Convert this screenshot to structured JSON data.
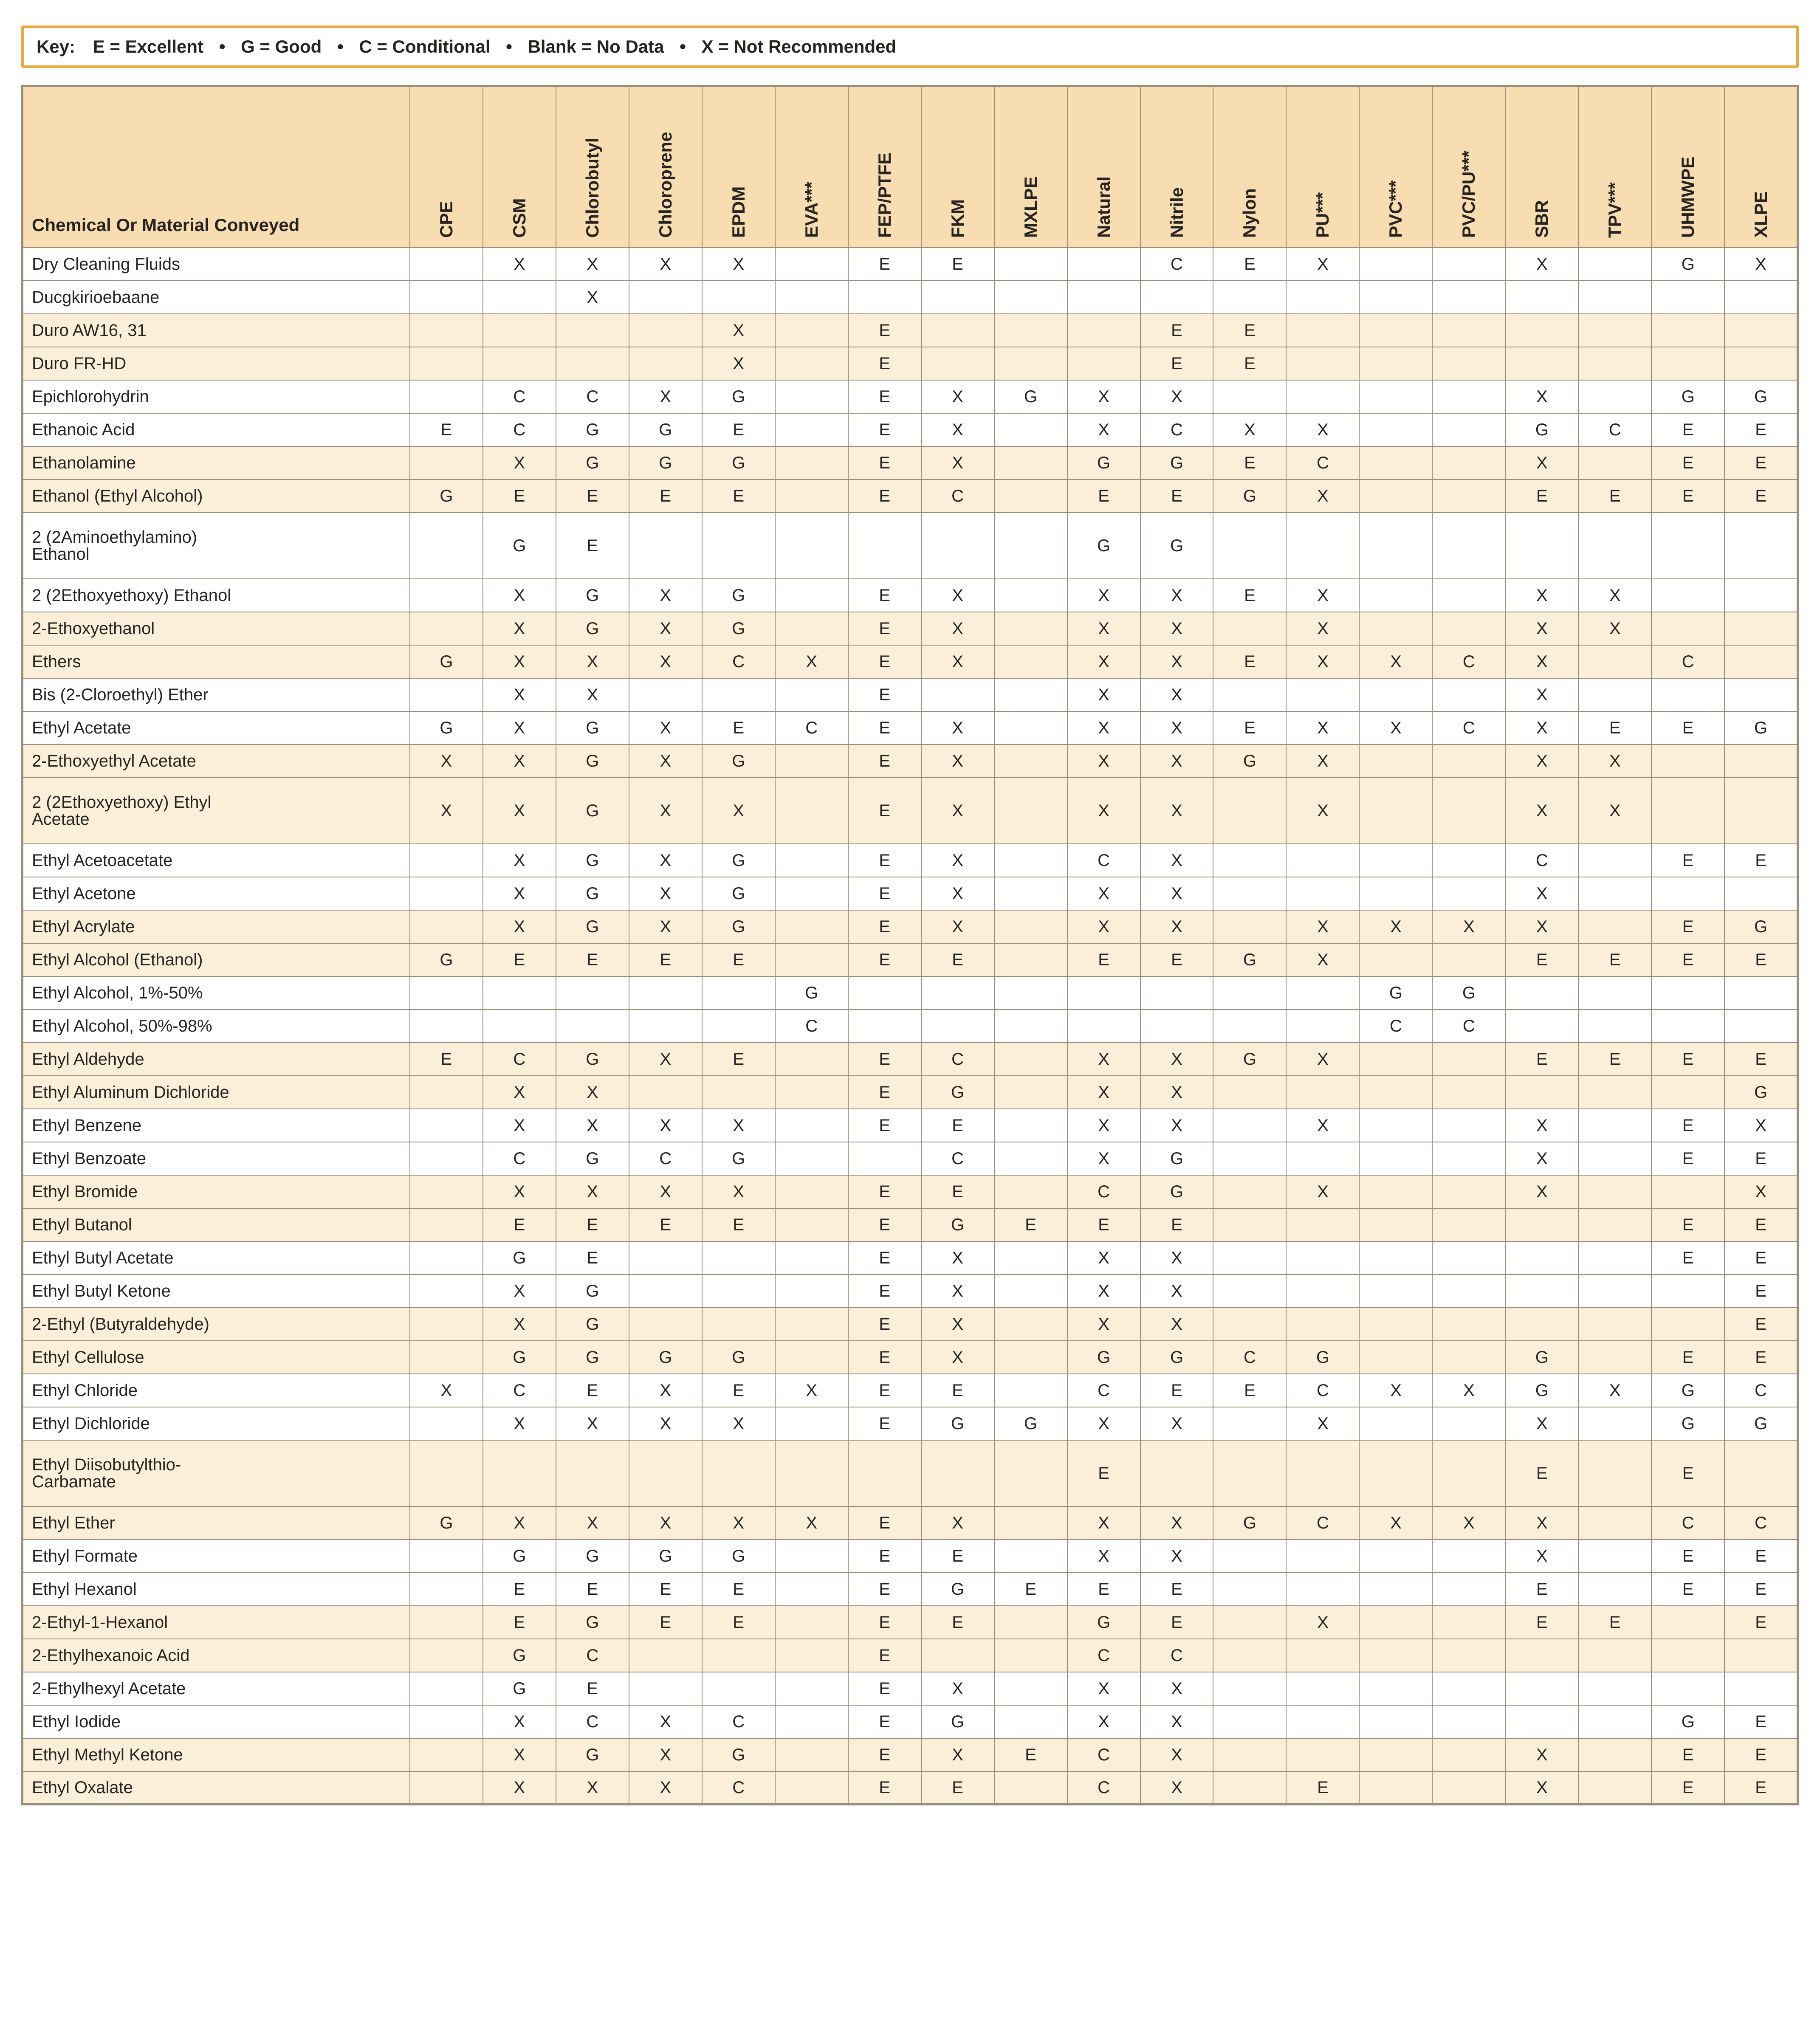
{
  "key": {
    "lead": "Key:",
    "items": [
      "E = Excellent",
      "G = Good",
      "C = Conditional",
      "Blank = No Data",
      "X = Not Recommended"
    ],
    "sep": "•"
  },
  "columns": {
    "row_header": "Chemical Or\nMaterial Conveyed",
    "list": [
      "CPE",
      "CSM",
      "Chlorobutyl",
      "Chloroprene",
      "EPDM",
      "EVA***",
      "FEP/PTFE",
      "FKM",
      "MXLPE",
      "Natural",
      "Nitrile",
      "Nylon",
      "PU***",
      "PVC***",
      "PVC/PU***",
      "SBR",
      "TPV***",
      "UHMWPE",
      "XLPE"
    ]
  },
  "rows": [
    {
      "chem": "Dry Cleaning Fluids",
      "shade": false,
      "v": [
        "",
        "X",
        "X",
        "X",
        "X",
        "",
        "E",
        "E",
        "",
        "",
        "C",
        "E",
        "X",
        "",
        "",
        "X",
        "",
        "G",
        "X"
      ]
    },
    {
      "chem": "Ducgkirioebaane",
      "shade": false,
      "v": [
        "",
        "",
        "X",
        "",
        "",
        "",
        "",
        "",
        "",
        "",
        "",
        "",
        "",
        "",
        "",
        "",
        "",
        "",
        ""
      ]
    },
    {
      "chem": "Duro AW16, 31",
      "shade": true,
      "v": [
        "",
        "",
        "",
        "",
        "X",
        "",
        "E",
        "",
        "",
        "",
        "E",
        "E",
        "",
        "",
        "",
        "",
        "",
        "",
        ""
      ]
    },
    {
      "chem": "Duro FR-HD",
      "shade": true,
      "v": [
        "",
        "",
        "",
        "",
        "X",
        "",
        "E",
        "",
        "",
        "",
        "E",
        "E",
        "",
        "",
        "",
        "",
        "",
        "",
        ""
      ]
    },
    {
      "chem": "Epichlorohydrin",
      "shade": false,
      "v": [
        "",
        "C",
        "C",
        "X",
        "G",
        "",
        "E",
        "X",
        "G",
        "X",
        "X",
        "",
        "",
        "",
        "",
        "X",
        "",
        "G",
        "G"
      ]
    },
    {
      "chem": "Ethanoic Acid",
      "shade": false,
      "v": [
        "E",
        "C",
        "G",
        "G",
        "E",
        "",
        "E",
        "X",
        "",
        "X",
        "C",
        "X",
        "X",
        "",
        "",
        "G",
        "C",
        "E",
        "E"
      ]
    },
    {
      "chem": "Ethanolamine",
      "shade": true,
      "v": [
        "",
        "X",
        "G",
        "G",
        "G",
        "",
        "E",
        "X",
        "",
        "G",
        "G",
        "E",
        "C",
        "",
        "",
        "X",
        "",
        "E",
        "E"
      ]
    },
    {
      "chem": "Ethanol (Ethyl Alcohol)",
      "shade": true,
      "v": [
        "G",
        "E",
        "E",
        "E",
        "E",
        "",
        "E",
        "C",
        "",
        "E",
        "E",
        "G",
        "X",
        "",
        "",
        "E",
        "E",
        "E",
        "E"
      ]
    },
    {
      "chem": "2 (2Aminoethylamino)\n   Ethanol",
      "shade": false,
      "tall": true,
      "v": [
        "",
        "G",
        "E",
        "",
        "",
        "",
        "",
        "",
        "",
        "G",
        "G",
        "",
        "",
        "",
        "",
        "",
        "",
        "",
        ""
      ]
    },
    {
      "chem": "2 (2Ethoxyethoxy) Ethanol",
      "shade": false,
      "v": [
        "",
        "X",
        "G",
        "X",
        "G",
        "",
        "E",
        "X",
        "",
        "X",
        "X",
        "E",
        "X",
        "",
        "",
        "X",
        "X",
        "",
        ""
      ]
    },
    {
      "chem": "2-Ethoxyethanol",
      "shade": true,
      "v": [
        "",
        "X",
        "G",
        "X",
        "G",
        "",
        "E",
        "X",
        "",
        "X",
        "X",
        "",
        "X",
        "",
        "",
        "X",
        "X",
        "",
        ""
      ]
    },
    {
      "chem": "Ethers",
      "shade": true,
      "v": [
        "G",
        "X",
        "X",
        "X",
        "C",
        "X",
        "E",
        "X",
        "",
        "X",
        "X",
        "E",
        "X",
        "X",
        "C",
        "X",
        "",
        "C",
        ""
      ]
    },
    {
      "chem": "Bis (2-Cloroethyl) Ether",
      "shade": false,
      "v": [
        "",
        "X",
        "X",
        "",
        "",
        "",
        "E",
        "",
        "",
        "X",
        "X",
        "",
        "",
        "",
        "",
        "X",
        "",
        "",
        ""
      ]
    },
    {
      "chem": "Ethyl Acetate",
      "shade": false,
      "v": [
        "G",
        "X",
        "G",
        "X",
        "E",
        "C",
        "E",
        "X",
        "",
        "X",
        "X",
        "E",
        "X",
        "X",
        "C",
        "X",
        "E",
        "E",
        "G"
      ]
    },
    {
      "chem": "2-Ethoxyethyl Acetate",
      "shade": true,
      "v": [
        "X",
        "X",
        "G",
        "X",
        "G",
        "",
        "E",
        "X",
        "",
        "X",
        "X",
        "G",
        "X",
        "",
        "",
        "X",
        "X",
        "",
        ""
      ]
    },
    {
      "chem": "2 (2Ethoxyethoxy) Ethyl\n   Acetate",
      "shade": true,
      "tall": true,
      "v": [
        "X",
        "X",
        "G",
        "X",
        "X",
        "",
        "E",
        "X",
        "",
        "X",
        "X",
        "",
        "X",
        "",
        "",
        "X",
        "X",
        "",
        ""
      ]
    },
    {
      "chem": "Ethyl Acetoacetate",
      "shade": false,
      "v": [
        "",
        "X",
        "G",
        "X",
        "G",
        "",
        "E",
        "X",
        "",
        "C",
        "X",
        "",
        "",
        "",
        "",
        "C",
        "",
        "E",
        "E"
      ]
    },
    {
      "chem": "Ethyl Acetone",
      "shade": false,
      "v": [
        "",
        "X",
        "G",
        "X",
        "G",
        "",
        "E",
        "X",
        "",
        "X",
        "X",
        "",
        "",
        "",
        "",
        "X",
        "",
        "",
        ""
      ]
    },
    {
      "chem": "Ethyl Acrylate",
      "shade": true,
      "v": [
        "",
        "X",
        "G",
        "X",
        "G",
        "",
        "E",
        "X",
        "",
        "X",
        "X",
        "",
        "X",
        "X",
        "X",
        "X",
        "",
        "E",
        "G"
      ]
    },
    {
      "chem": "Ethyl Alcohol (Ethanol)",
      "shade": true,
      "v": [
        "G",
        "E",
        "E",
        "E",
        "E",
        "",
        "E",
        "E",
        "",
        "E",
        "E",
        "G",
        "X",
        "",
        "",
        "E",
        "E",
        "E",
        "E"
      ]
    },
    {
      "chem": "Ethyl Alcohol, 1%-50%",
      "shade": false,
      "v": [
        "",
        "",
        "",
        "",
        "",
        "G",
        "",
        "",
        "",
        "",
        "",
        "",
        "",
        "G",
        "G",
        "",
        "",
        "",
        ""
      ]
    },
    {
      "chem": "Ethyl Alcohol, 50%-98%",
      "shade": false,
      "v": [
        "",
        "",
        "",
        "",
        "",
        "C",
        "",
        "",
        "",
        "",
        "",
        "",
        "",
        "C",
        "C",
        "",
        "",
        "",
        ""
      ]
    },
    {
      "chem": "Ethyl Aldehyde",
      "shade": true,
      "v": [
        "E",
        "C",
        "G",
        "X",
        "E",
        "",
        "E",
        "C",
        "",
        "X",
        "X",
        "G",
        "X",
        "",
        "",
        "E",
        "E",
        "E",
        "E"
      ]
    },
    {
      "chem": "Ethyl Aluminum Dichloride",
      "shade": true,
      "v": [
        "",
        "X",
        "X",
        "",
        "",
        "",
        "E",
        "G",
        "",
        "X",
        "X",
        "",
        "",
        "",
        "",
        "",
        "",
        "",
        "G"
      ]
    },
    {
      "chem": "Ethyl Benzene",
      "shade": false,
      "v": [
        "",
        "X",
        "X",
        "X",
        "X",
        "",
        "E",
        "E",
        "",
        "X",
        "X",
        "",
        "X",
        "",
        "",
        "X",
        "",
        "E",
        "X"
      ]
    },
    {
      "chem": "Ethyl Benzoate",
      "shade": false,
      "v": [
        "",
        "C",
        "G",
        "C",
        "G",
        "",
        "",
        "C",
        "",
        "X",
        "G",
        "",
        "",
        "",
        "",
        "X",
        "",
        "E",
        "E"
      ]
    },
    {
      "chem": "Ethyl Bromide",
      "shade": true,
      "v": [
        "",
        "X",
        "X",
        "X",
        "X",
        "",
        "E",
        "E",
        "",
        "C",
        "G",
        "",
        "X",
        "",
        "",
        "X",
        "",
        "",
        "X"
      ]
    },
    {
      "chem": "Ethyl Butanol",
      "shade": true,
      "v": [
        "",
        "E",
        "E",
        "E",
        "E",
        "",
        "E",
        "G",
        "E",
        "E",
        "E",
        "",
        "",
        "",
        "",
        "",
        "",
        "E",
        "E"
      ]
    },
    {
      "chem": "Ethyl Butyl Acetate",
      "shade": false,
      "v": [
        "",
        "G",
        "E",
        "",
        "",
        "",
        "E",
        "X",
        "",
        "X",
        "X",
        "",
        "",
        "",
        "",
        "",
        "",
        "E",
        "E"
      ]
    },
    {
      "chem": "Ethyl Butyl Ketone",
      "shade": false,
      "v": [
        "",
        "X",
        "G",
        "",
        "",
        "",
        "E",
        "X",
        "",
        "X",
        "X",
        "",
        "",
        "",
        "",
        "",
        "",
        "",
        "E"
      ]
    },
    {
      "chem": "2-Ethyl (Butyraldehyde)",
      "shade": true,
      "v": [
        "",
        "X",
        "G",
        "",
        "",
        "",
        "E",
        "X",
        "",
        "X",
        "X",
        "",
        "",
        "",
        "",
        "",
        "",
        "",
        "E"
      ]
    },
    {
      "chem": "Ethyl Cellulose",
      "shade": true,
      "v": [
        "",
        "G",
        "G",
        "G",
        "G",
        "",
        "E",
        "X",
        "",
        "G",
        "G",
        "C",
        "G",
        "",
        "",
        "G",
        "",
        "E",
        "E"
      ]
    },
    {
      "chem": "Ethyl Chloride",
      "shade": false,
      "v": [
        "X",
        "C",
        "E",
        "X",
        "E",
        "X",
        "E",
        "E",
        "",
        "C",
        "E",
        "E",
        "C",
        "X",
        "X",
        "G",
        "X",
        "G",
        "C"
      ]
    },
    {
      "chem": "Ethyl Dichloride",
      "shade": false,
      "v": [
        "",
        "X",
        "X",
        "X",
        "X",
        "",
        "E",
        "G",
        "G",
        "X",
        "X",
        "",
        "X",
        "",
        "",
        "X",
        "",
        "G",
        "G"
      ]
    },
    {
      "chem": "Ethyl Diisobutylthio-\n   Carbamate",
      "shade": true,
      "tall": true,
      "v": [
        "",
        "",
        "",
        "",
        "",
        "",
        "",
        "",
        "",
        "E",
        "",
        "",
        "",
        "",
        "",
        "E",
        "",
        "E",
        ""
      ]
    },
    {
      "chem": "Ethyl Ether",
      "shade": true,
      "v": [
        "G",
        "X",
        "X",
        "X",
        "X",
        "X",
        "E",
        "X",
        "",
        "X",
        "X",
        "G",
        "C",
        "X",
        "X",
        "X",
        "",
        "C",
        "C"
      ]
    },
    {
      "chem": "Ethyl Formate",
      "shade": false,
      "v": [
        "",
        "G",
        "G",
        "G",
        "G",
        "",
        "E",
        "E",
        "",
        "X",
        "X",
        "",
        "",
        "",
        "",
        "X",
        "",
        "E",
        "E"
      ]
    },
    {
      "chem": "Ethyl Hexanol",
      "shade": false,
      "v": [
        "",
        "E",
        "E",
        "E",
        "E",
        "",
        "E",
        "G",
        "E",
        "E",
        "E",
        "",
        "",
        "",
        "",
        "E",
        "",
        "E",
        "E"
      ]
    },
    {
      "chem": "2-Ethyl-1-Hexanol",
      "shade": true,
      "v": [
        "",
        "E",
        "G",
        "E",
        "E",
        "",
        "E",
        "E",
        "",
        "G",
        "E",
        "",
        "X",
        "",
        "",
        "E",
        "E",
        "",
        "E"
      ]
    },
    {
      "chem": "2-Ethylhexanoic Acid",
      "shade": true,
      "v": [
        "",
        "G",
        "C",
        "",
        "",
        "",
        "E",
        "",
        "",
        "C",
        "C",
        "",
        "",
        "",
        "",
        "",
        "",
        "",
        ""
      ]
    },
    {
      "chem": "2-Ethylhexyl Acetate",
      "shade": false,
      "v": [
        "",
        "G",
        "E",
        "",
        "",
        "",
        "E",
        "X",
        "",
        "X",
        "X",
        "",
        "",
        "",
        "",
        "",
        "",
        "",
        ""
      ]
    },
    {
      "chem": "Ethyl Iodide",
      "shade": false,
      "v": [
        "",
        "X",
        "C",
        "X",
        "C",
        "",
        "E",
        "G",
        "",
        "X",
        "X",
        "",
        "",
        "",
        "",
        "",
        "",
        "G",
        "E"
      ]
    },
    {
      "chem": "Ethyl Methyl Ketone",
      "shade": true,
      "v": [
        "",
        "X",
        "G",
        "X",
        "G",
        "",
        "E",
        "X",
        "E",
        "C",
        "X",
        "",
        "",
        "",
        "",
        "X",
        "",
        "E",
        "E"
      ]
    },
    {
      "chem": "Ethyl Oxalate",
      "shade": true,
      "v": [
        "",
        "X",
        "X",
        "X",
        "C",
        "",
        "E",
        "E",
        "",
        "C",
        "X",
        "",
        "E",
        "",
        "",
        "X",
        "",
        "E",
        "E"
      ]
    }
  ]
}
